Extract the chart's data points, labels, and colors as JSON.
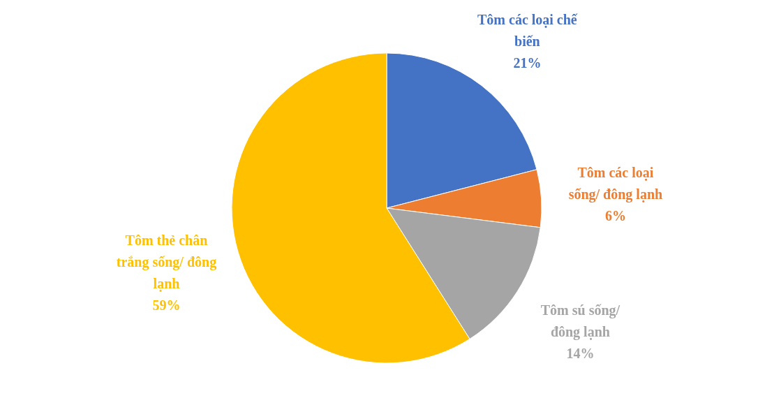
{
  "chart_data": {
    "type": "pie",
    "categories": [
      "Tôm các loại chế biến",
      "Tôm các loại sống/ đông lạnh",
      "Tôm sú sống/ đông lạnh",
      "Tôm thẻ chân trắng sống/ đông lạnh"
    ],
    "values": [
      21,
      6,
      14,
      59
    ],
    "value_labels": [
      "21%",
      "6%",
      "14%",
      "59%"
    ],
    "colors": [
      "#4472c4",
      "#ed7d31",
      "#a5a5a5",
      "#ffc000"
    ]
  }
}
